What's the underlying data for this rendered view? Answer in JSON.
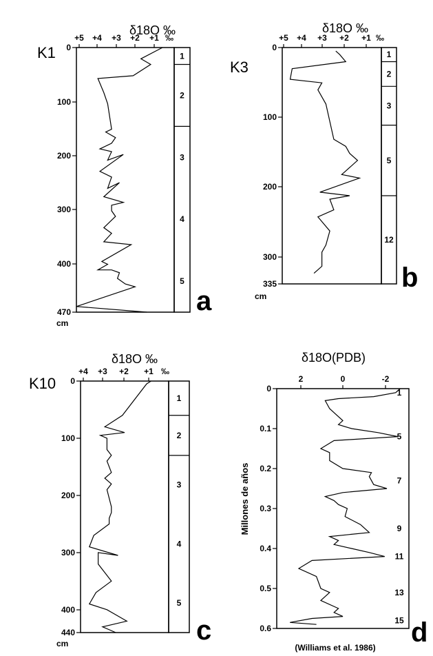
{
  "chart_data": [
    {
      "type": "line",
      "panel": "a",
      "core": "K1",
      "title": "δ18O ‰",
      "x_ticks": [
        "+5",
        "+4",
        "+3",
        "+2",
        "+1",
        "‰"
      ],
      "xlim": [
        5,
        0
      ],
      "y_ticks": [
        "0",
        "100",
        "200",
        "300",
        "400",
        "470"
      ],
      "ylim": [
        0,
        470
      ],
      "y_unit": "cm",
      "zones": [
        {
          "label": "1",
          "from": 0,
          "to": 30
        },
        {
          "label": "2",
          "from": 30,
          "to": 140
        },
        {
          "label": "3",
          "from": 140,
          "to": 470,
          "labels": [
            "3",
            "4",
            "5"
          ]
        }
      ],
      "series": [
        {
          "values": [
            [
              0.6,
              0
            ],
            [
              1.7,
              20
            ],
            [
              1.2,
              30
            ],
            [
              2.1,
              50
            ],
            [
              3.9,
              55
            ],
            [
              3.6,
              80
            ],
            [
              3.4,
              100
            ],
            [
              3.2,
              145
            ],
            [
              3.5,
              150
            ],
            [
              3.0,
              160
            ],
            [
              3.2,
              170
            ],
            [
              3.8,
              180
            ],
            [
              3.2,
              185
            ],
            [
              3.4,
              200
            ],
            [
              2.6,
              190
            ],
            [
              3.8,
              220
            ],
            [
              3.2,
              230
            ],
            [
              3.4,
              250
            ],
            [
              2.8,
              240
            ],
            [
              3.6,
              265
            ],
            [
              2.6,
              275
            ],
            [
              3.2,
              280
            ],
            [
              3.2,
              290
            ],
            [
              3.0,
              300
            ],
            [
              3.6,
              320
            ],
            [
              3.2,
              330
            ],
            [
              3.6,
              345
            ],
            [
              2.2,
              350
            ],
            [
              3.7,
              380
            ],
            [
              3.4,
              385
            ],
            [
              3.9,
              395
            ],
            [
              3.2,
              395
            ],
            [
              2.8,
              400
            ],
            [
              2.9,
              410
            ],
            [
              2.5,
              420
            ],
            [
              2.0,
              425
            ],
            [
              5.0,
              460
            ],
            [
              1.4,
              470
            ]
          ]
        }
      ]
    },
    {
      "type": "line",
      "panel": "b",
      "core": "K3",
      "title": "δ18O ‰",
      "x_ticks": [
        "+5",
        "+4",
        "+3",
        "+2",
        "+1",
        "‰"
      ],
      "xlim": [
        5,
        0
      ],
      "y_ticks": [
        "0",
        "100",
        "200",
        "300",
        "335"
      ],
      "ylim": [
        0,
        335
      ],
      "y_unit": "cm",
      "zones": [
        {
          "label": "1",
          "from": 0,
          "to": 20
        },
        {
          "label": "2",
          "from": 20,
          "to": 55
        },
        {
          "label": "3",
          "from": 55,
          "to": 110
        },
        {
          "label": "5",
          "from": 110,
          "to": 210
        },
        {
          "label": "12",
          "from": 210,
          "to": 335
        }
      ],
      "series": [
        {
          "values": [
            [
              2.3,
              5
            ],
            [
              2.1,
              10
            ],
            [
              1.8,
              20
            ],
            [
              4.5,
              30
            ],
            [
              4.6,
              45
            ],
            [
              3.0,
              50
            ],
            [
              3.2,
              60
            ],
            [
              2.8,
              80
            ],
            [
              2.4,
              130
            ],
            [
              1.8,
              140
            ],
            [
              1.6,
              150
            ],
            [
              1.2,
              160
            ],
            [
              1.8,
              175
            ],
            [
              2.0,
              180
            ],
            [
              1.1,
              185
            ],
            [
              3.1,
              205
            ],
            [
              1.6,
              210
            ],
            [
              2.6,
              215
            ],
            [
              2.4,
              230
            ],
            [
              3.2,
              240
            ],
            [
              2.6,
              260
            ],
            [
              2.8,
              280
            ],
            [
              3.0,
              290
            ],
            [
              3.0,
              310
            ],
            [
              3.4,
              320
            ]
          ]
        }
      ]
    },
    {
      "type": "line",
      "panel": "c",
      "core": "K10",
      "title": "δ18O ‰",
      "x_ticks": [
        "+4",
        "+3",
        "+2",
        "+1",
        "‰"
      ],
      "xlim": [
        4,
        0
      ],
      "y_ticks": [
        "0",
        "100",
        "200",
        "300",
        "400",
        "440"
      ],
      "ylim": [
        0,
        440
      ],
      "y_unit": "cm",
      "zones": [
        {
          "label": "1",
          "from": 0,
          "to": 60
        },
        {
          "label": "2",
          "from": 60,
          "to": 130
        },
        {
          "label": "3",
          "from": 130,
          "to": 440,
          "labels": [
            "3",
            "4",
            "5"
          ]
        }
      ],
      "series": [
        {
          "values": [
            [
              0.8,
              0
            ],
            [
              1.0,
              5
            ],
            [
              2.1,
              60
            ],
            [
              2.9,
              80
            ],
            [
              2.0,
              90
            ],
            [
              3.1,
              95
            ],
            [
              2.8,
              100
            ],
            [
              2.8,
              120
            ],
            [
              2.6,
              130
            ],
            [
              2.8,
              140
            ],
            [
              2.6,
              160
            ],
            [
              2.9,
              170
            ],
            [
              2.6,
              180
            ],
            [
              2.8,
              190
            ],
            [
              2.6,
              220
            ],
            [
              2.6,
              230
            ],
            [
              2.7,
              240
            ],
            [
              2.7,
              250
            ],
            [
              3.4,
              270
            ],
            [
              3.6,
              290
            ],
            [
              2.3,
              305
            ],
            [
              3.2,
              300
            ],
            [
              3.2,
              320
            ],
            [
              2.6,
              350
            ],
            [
              3.3,
              370
            ],
            [
              3.6,
              390
            ],
            [
              2.8,
              400
            ],
            [
              1.9,
              420
            ],
            [
              3.0,
              430
            ],
            [
              2.4,
              440
            ]
          ]
        }
      ]
    },
    {
      "type": "line",
      "panel": "d",
      "title": "δ18O(PDB)",
      "x_ticks": [
        "2",
        "0",
        "-2"
      ],
      "xlim": [
        3.6,
        -2.4
      ],
      "ylabel": "Millones de años",
      "y_ticks": [
        "0",
        "0.1",
        "0.2",
        "0.3",
        "0.4",
        "0.5",
        "0.6"
      ],
      "ylim": [
        0,
        0.6
      ],
      "stage_labels": [
        {
          "label": "1",
          "y": 0.01
        },
        {
          "label": "5",
          "y": 0.12
        },
        {
          "label": "7",
          "y": 0.23
        },
        {
          "label": "9",
          "y": 0.35
        },
        {
          "label": "11",
          "y": 0.42
        },
        {
          "label": "13",
          "y": 0.51
        },
        {
          "label": "15",
          "y": 0.58
        }
      ],
      "source": "(Williams et al. 1986)",
      "series": [
        {
          "values": [
            [
              -2.0,
              0.0
            ],
            [
              -1.8,
              0.01
            ],
            [
              -0.8,
              0.02
            ],
            [
              0.8,
              0.025
            ],
            [
              1.4,
              0.03
            ],
            [
              1.2,
              0.05
            ],
            [
              1.0,
              0.06
            ],
            [
              0.6,
              0.08
            ],
            [
              0.8,
              0.09
            ],
            [
              0.2,
              0.1
            ],
            [
              -1.0,
              0.11
            ],
            [
              -1.9,
              0.12
            ],
            [
              1.0,
              0.13
            ],
            [
              1.6,
              0.15
            ],
            [
              1.2,
              0.16
            ],
            [
              1.2,
              0.17
            ],
            [
              1.2,
              0.18
            ],
            [
              0.6,
              0.2
            ],
            [
              -0.7,
              0.21
            ],
            [
              -0.6,
              0.22
            ],
            [
              -0.8,
              0.24
            ],
            [
              -1.4,
              0.25
            ],
            [
              0.6,
              0.26
            ],
            [
              1.4,
              0.27
            ],
            [
              1.0,
              0.28
            ],
            [
              0.8,
              0.29
            ],
            [
              0.4,
              0.3
            ],
            [
              0.5,
              0.32
            ],
            [
              -0.2,
              0.34
            ],
            [
              -0.6,
              0.36
            ],
            [
              1.2,
              0.37
            ],
            [
              0.8,
              0.38
            ],
            [
              1.0,
              0.39
            ],
            [
              0.2,
              0.4
            ],
            [
              -0.6,
              0.41
            ],
            [
              -1.3,
              0.42
            ],
            [
              2.0,
              0.43
            ],
            [
              2.6,
              0.45
            ],
            [
              1.8,
              0.47
            ],
            [
              1.6,
              0.5
            ],
            [
              1.2,
              0.51
            ],
            [
              1.6,
              0.53
            ],
            [
              0.8,
              0.55
            ],
            [
              1.0,
              0.56
            ],
            [
              0.6,
              0.57
            ],
            [
              2.0,
              0.575
            ],
            [
              3.0,
              0.585
            ],
            [
              1.8,
              0.59
            ]
          ]
        }
      ]
    }
  ]
}
